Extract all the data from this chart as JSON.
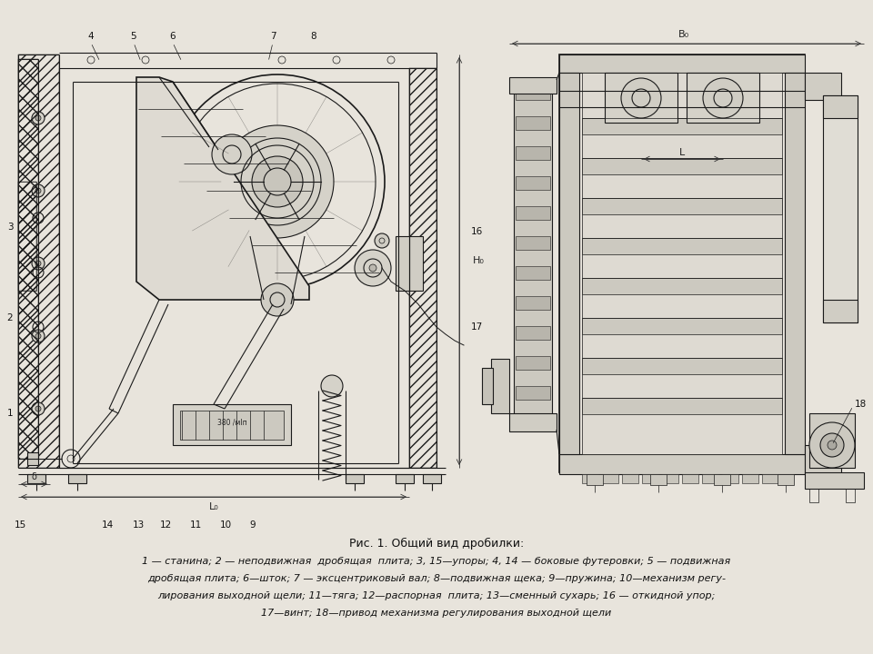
{
  "bg_color": "#d4d0c8",
  "paper_color": "#e8e4dc",
  "line_color": "#1a1a1a",
  "dim_color": "#333333",
  "title": "Рис. 1. Общий вид дробилки:",
  "caption_line1": "1 — станина; 2 — неподвижная  дробящая  плита; 3, 15—упоры; 4, 14 — боковые футеровки; 5 — подвижная",
  "caption_line2": "дробящая плита; 6—шток; 7 — эксцентриковый вал; 8—подвижная щека; 9—пружина; 10—механизм регу-",
  "caption_line3": "лирования выходной щели; 11—тяга; 12—распорная  плита; 13—сменный сухарь; 16 — откидной упор;",
  "caption_line4": "17—винт; 18—привод механизма регулирования выходной щели"
}
